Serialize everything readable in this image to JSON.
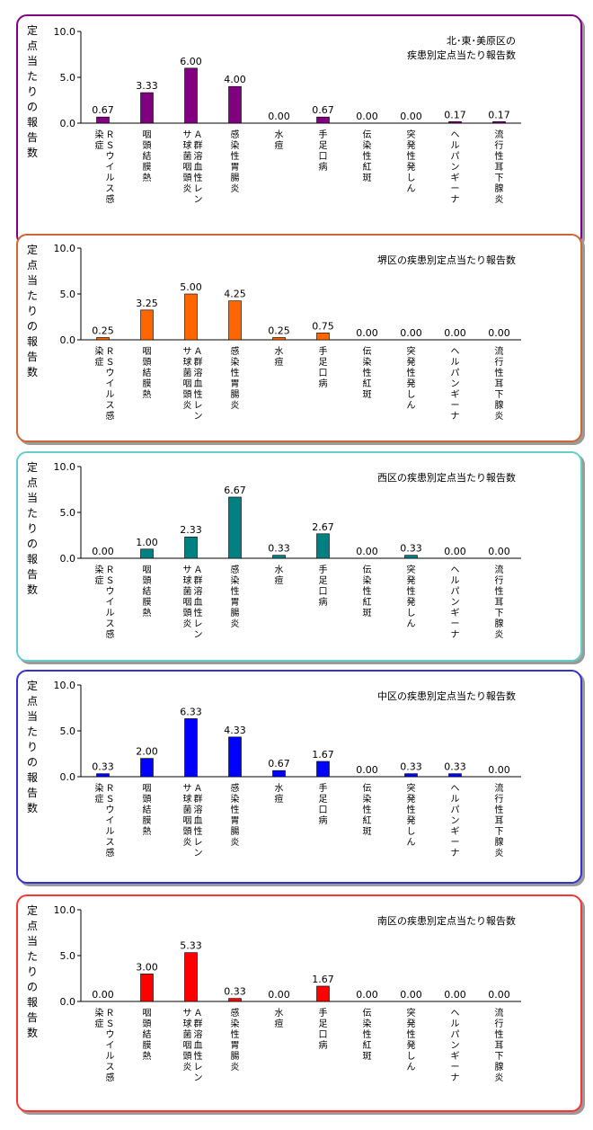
{
  "chart_data": [
    {
      "type": "bar",
      "title": "北･東･美原区の\n疾患別定点当たり報告数",
      "ylabel": "定点当たりの報告数",
      "ylim": [
        0,
        10
      ],
      "yticks": [
        "0.0",
        "5.0",
        "10.0"
      ],
      "categories": [
        "ＲＳウイルス感染症",
        "咽頭結膜熱",
        "Ａ群溶血性レンサ球菌咽頭炎",
        "感染性胃腸炎",
        "水痘",
        "手足口病",
        "伝染性紅斑",
        "突発性発しん",
        "ヘルパンギーナ",
        "流行性耳下腺炎"
      ],
      "values": [
        0.67,
        3.33,
        6.0,
        4.0,
        0.0,
        0.67,
        0.0,
        0.0,
        0.17,
        0.17
      ],
      "labels": [
        "0.67",
        "3.33",
        "6.00",
        "4.00",
        "0.00",
        "0.67",
        "0.00",
        "0.00",
        "0.17",
        "0.17"
      ],
      "color": "#800080",
      "border_color": "#800080"
    },
    {
      "type": "bar",
      "title": "堺区の疾患別定点当たり報告数",
      "ylabel": "定点当たりの報告数",
      "ylim": [
        0,
        10
      ],
      "yticks": [
        "0.0",
        "5.0",
        "10.0"
      ],
      "categories": [
        "ＲＳウイルス感染症",
        "咽頭結膜熱",
        "Ａ群溶血性レンサ球菌咽頭炎",
        "感染性胃腸炎",
        "水痘",
        "手足口病",
        "伝染性紅斑",
        "突発性発しん",
        "ヘルパンギーナ",
        "流行性耳下腺炎"
      ],
      "values": [
        0.25,
        3.25,
        5.0,
        4.25,
        0.25,
        0.75,
        0.0,
        0.0,
        0.0,
        0.0
      ],
      "labels": [
        "0.25",
        "3.25",
        "5.00",
        "4.25",
        "0.25",
        "0.75",
        "0.00",
        "0.00",
        "0.00",
        "0.00"
      ],
      "color": "#FF6600",
      "border_color": "#CC6633"
    },
    {
      "type": "bar",
      "title": "西区の疾患別定点当たり報告数",
      "ylabel": "定点当たりの報告数",
      "ylim": [
        0,
        10
      ],
      "yticks": [
        "0.0",
        "5.0",
        "10.0"
      ],
      "categories": [
        "ＲＳウイルス感染症",
        "咽頭結膜熱",
        "Ａ群溶血性レンサ球菌咽頭炎",
        "感染性胃腸炎",
        "水痘",
        "手足口病",
        "伝染性紅斑",
        "突発性発しん",
        "ヘルパンギーナ",
        "流行性耳下腺炎"
      ],
      "values": [
        0.0,
        1.0,
        2.33,
        6.67,
        0.33,
        2.67,
        0.0,
        0.33,
        0.0,
        0.0
      ],
      "labels": [
        "0.00",
        "1.00",
        "2.33",
        "6.67",
        "0.33",
        "2.67",
        "0.00",
        "0.33",
        "0.00",
        "0.00"
      ],
      "color": "#008080",
      "border_color": "#66CCCC"
    },
    {
      "type": "bar",
      "title": "中区の疾患別定点当たり報告数",
      "ylabel": "定点当たりの報告数",
      "ylim": [
        0,
        10
      ],
      "yticks": [
        "0.0",
        "5.0",
        "10.0"
      ],
      "categories": [
        "ＲＳウイルス感染症",
        "咽頭結膜熱",
        "Ａ群溶血性レンサ球菌咽頭炎",
        "感染性胃腸炎",
        "水痘",
        "手足口病",
        "伝染性紅斑",
        "突発性発しん",
        "ヘルパンギーナ",
        "流行性耳下腺炎"
      ],
      "values": [
        0.33,
        2.0,
        6.33,
        4.33,
        0.67,
        1.67,
        0.0,
        0.33,
        0.33,
        0.0
      ],
      "labels": [
        "0.33",
        "2.00",
        "6.33",
        "4.33",
        "0.67",
        "1.67",
        "0.00",
        "0.33",
        "0.33",
        "0.00"
      ],
      "color": "#0000FF",
      "border_color": "#3333CC"
    },
    {
      "type": "bar",
      "title": "南区の疾患別定点当たり報告数",
      "ylabel": "定点当たりの報告数",
      "ylim": [
        0,
        10
      ],
      "yticks": [
        "0.0",
        "5.0",
        "10.0"
      ],
      "categories": [
        "ＲＳウイルス感染症",
        "咽頭結膜熱",
        "Ａ群溶血性レンサ球菌咽頭炎",
        "感染性胃腸炎",
        "水痘",
        "手足口病",
        "伝染性紅斑",
        "突発性発しん",
        "ヘルパンギーナ",
        "流行性耳下腺炎"
      ],
      "values": [
        0.0,
        3.0,
        5.33,
        0.33,
        0.0,
        1.67,
        0.0,
        0.0,
        0.0,
        0.0
      ],
      "labels": [
        "0.00",
        "3.00",
        "5.33",
        "0.33",
        "0.00",
        "1.67",
        "0.00",
        "0.00",
        "0.00",
        "0.00"
      ],
      "color": "#FF0000",
      "border_color": "#FF3333"
    }
  ]
}
